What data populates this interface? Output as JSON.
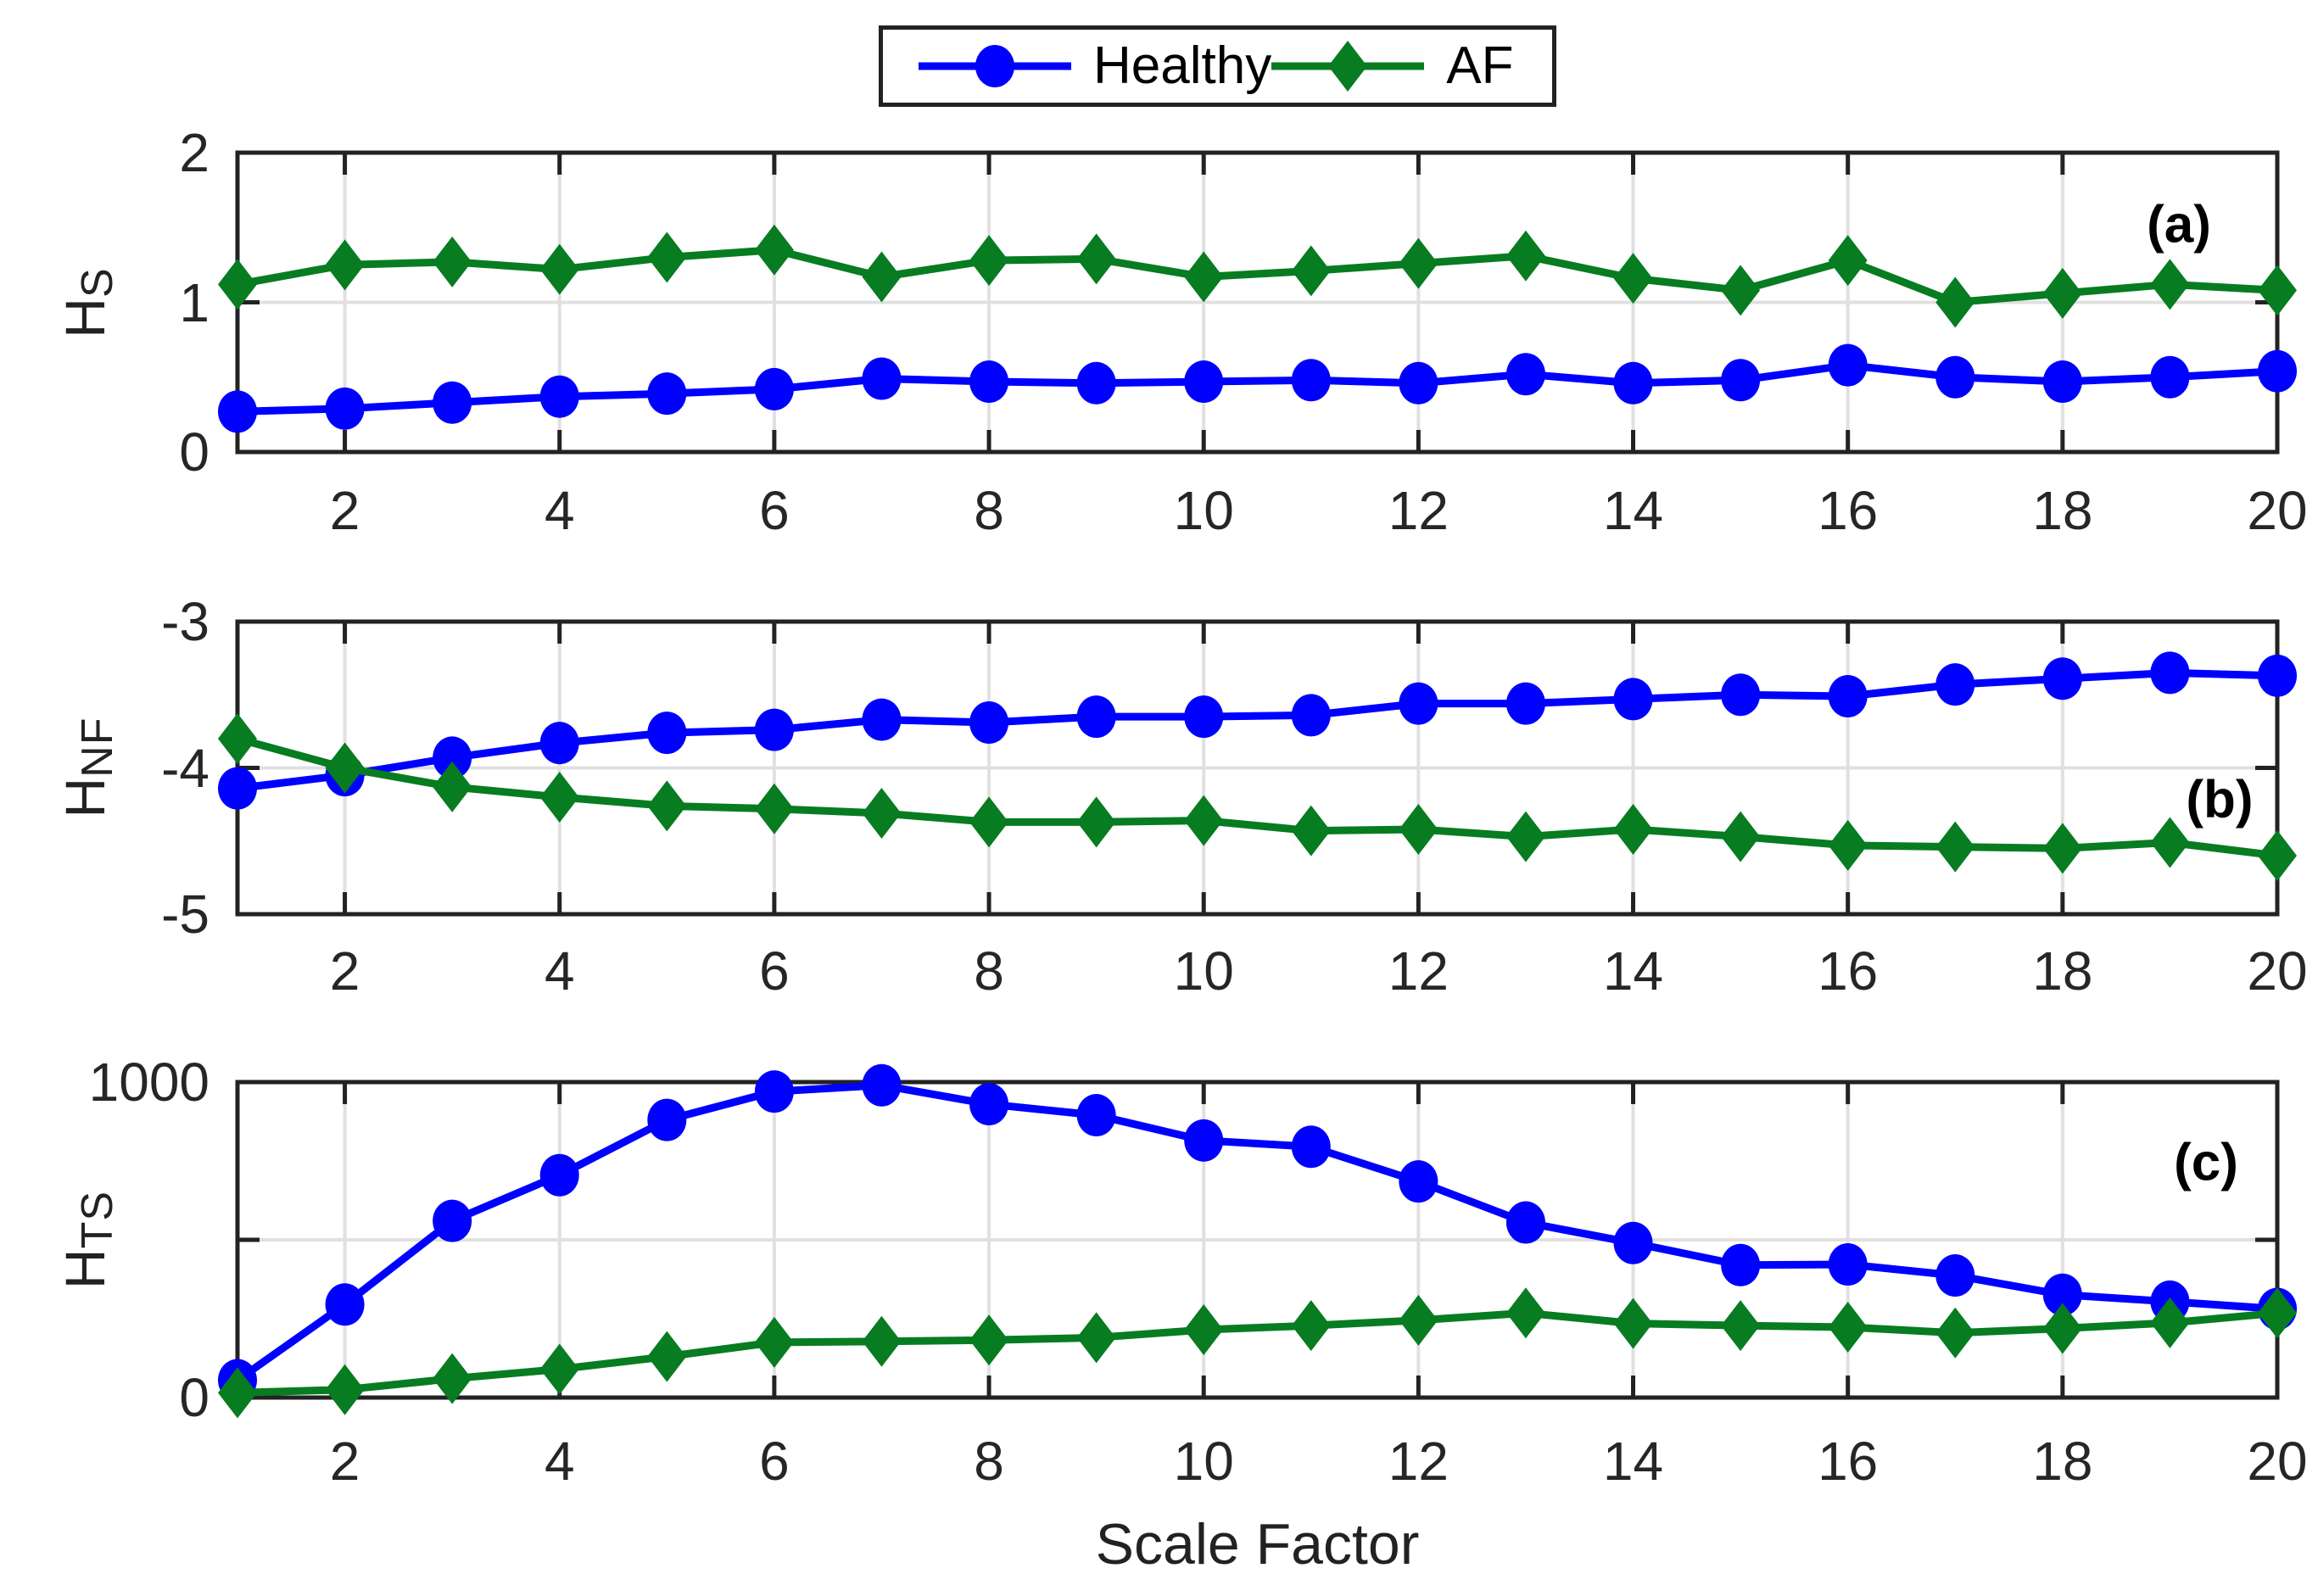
{
  "figure": {
    "xlabel": "Scale Factor"
  },
  "legend": {
    "items": [
      {
        "label": "Healthy",
        "marker": "circle",
        "color": "#0000ff"
      },
      {
        "label": "AF",
        "marker": "diamond",
        "color": "#077c21"
      }
    ]
  },
  "chart_data": [
    {
      "type": "line",
      "panel_label": "(a)",
      "ylabel_main": "H",
      "ylabel_sub": "S",
      "xlim": [
        1,
        20
      ],
      "ylim": [
        0,
        2
      ],
      "xticks": [
        2,
        4,
        6,
        8,
        10,
        12,
        14,
        16,
        18,
        20
      ],
      "yticks": [
        {
          "v": 0,
          "label": "0"
        },
        {
          "v": 1,
          "label": "1"
        },
        {
          "v": 2,
          "label": "2"
        }
      ],
      "grid": true,
      "legend_position": "above-figure",
      "x": [
        1,
        2,
        3,
        4,
        5,
        6,
        7,
        8,
        9,
        10,
        11,
        12,
        13,
        14,
        15,
        16,
        17,
        18,
        19,
        20
      ],
      "series": [
        {
          "name": "Healthy",
          "color": "#0000ff",
          "marker": "circle",
          "values": [
            0.27,
            0.29,
            0.33,
            0.37,
            0.39,
            0.42,
            0.49,
            0.47,
            0.46,
            0.47,
            0.48,
            0.46,
            0.52,
            0.46,
            0.48,
            0.58,
            0.5,
            0.47,
            0.5,
            0.54
          ]
        },
        {
          "name": "AF",
          "color": "#077c21",
          "marker": "diamond",
          "values": [
            1.12,
            1.25,
            1.27,
            1.22,
            1.3,
            1.35,
            1.17,
            1.28,
            1.29,
            1.17,
            1.21,
            1.26,
            1.31,
            1.16,
            1.08,
            1.28,
            1.0,
            1.06,
            1.12,
            1.08
          ]
        }
      ]
    },
    {
      "type": "line",
      "panel_label": "(b)",
      "ylabel_main": "H",
      "ylabel_sub": "NF",
      "xlim": [
        1,
        20
      ],
      "ylim": [
        -5,
        -3
      ],
      "xticks": [
        2,
        4,
        6,
        8,
        10,
        12,
        14,
        16,
        18,
        20
      ],
      "yticks": [
        {
          "v": -5,
          "label": "-5"
        },
        {
          "v": -4,
          "label": "-4"
        },
        {
          "v": -3,
          "label": "-3"
        }
      ],
      "grid": true,
      "x": [
        1,
        2,
        3,
        4,
        5,
        6,
        7,
        8,
        9,
        10,
        11,
        12,
        13,
        14,
        15,
        16,
        17,
        18,
        19,
        20
      ],
      "series": [
        {
          "name": "Healthy",
          "color": "#0000ff",
          "marker": "circle",
          "values": [
            -4.14,
            -4.05,
            -3.93,
            -3.83,
            -3.76,
            -3.74,
            -3.67,
            -3.69,
            -3.65,
            -3.65,
            -3.64,
            -3.56,
            -3.56,
            -3.53,
            -3.5,
            -3.51,
            -3.43,
            -3.39,
            -3.35,
            -3.37
          ]
        },
        {
          "name": "AF",
          "color": "#077c21",
          "marker": "diamond",
          "values": [
            -3.8,
            -4.0,
            -4.13,
            -4.2,
            -4.26,
            -4.28,
            -4.31,
            -4.37,
            -4.37,
            -4.36,
            -4.43,
            -4.42,
            -4.47,
            -4.42,
            -4.47,
            -4.53,
            -4.54,
            -4.55,
            -4.51,
            -4.6
          ]
        }
      ]
    },
    {
      "type": "line",
      "panel_label": "(c)",
      "ylabel_main": "H",
      "ylabel_sub": "TS",
      "xlim": [
        1,
        20
      ],
      "ylim": [
        0,
        1000
      ],
      "xticks": [
        2,
        4,
        6,
        8,
        10,
        12,
        14,
        16,
        18,
        20
      ],
      "yticks": [
        {
          "v": 0,
          "label": "0"
        },
        {
          "v": 500,
          "label": ""
        },
        {
          "v": 1000,
          "label": "1000"
        }
      ],
      "grid": true,
      "x": [
        1,
        2,
        3,
        4,
        5,
        6,
        7,
        8,
        9,
        10,
        11,
        12,
        13,
        14,
        15,
        16,
        17,
        18,
        19,
        20
      ],
      "series": [
        {
          "name": "Healthy",
          "color": "#0000ff",
          "marker": "circle",
          "values": [
            55,
            295,
            560,
            705,
            880,
            970,
            990,
            930,
            895,
            815,
            795,
            685,
            555,
            490,
            420,
            422,
            387,
            326,
            304,
            281
          ]
        },
        {
          "name": "AF",
          "color": "#077c21",
          "marker": "diamond",
          "values": [
            15,
            25,
            60,
            90,
            130,
            175,
            178,
            182,
            190,
            215,
            228,
            245,
            268,
            235,
            228,
            223,
            205,
            219,
            237,
            268
          ]
        }
      ]
    }
  ]
}
